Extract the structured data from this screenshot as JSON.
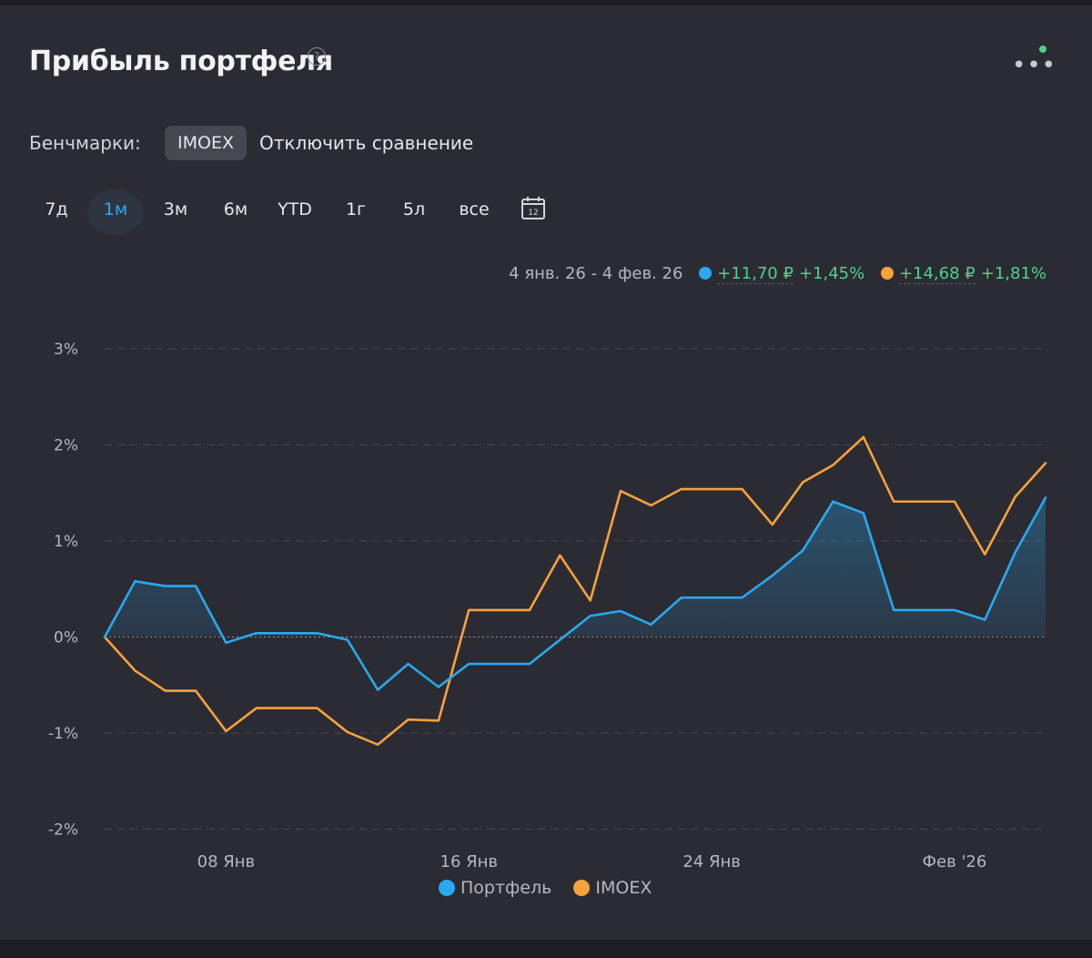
{
  "header": {
    "title": "Прибыль портфеля",
    "help_icon": "?",
    "more_icon": "•••"
  },
  "colors": {
    "portfolio": "#29a9f0",
    "imoex": "#f7a23b",
    "positive": "#4cd38a",
    "status_dot": "#4cd38a"
  },
  "benchmarks": {
    "label": "Бенчмарки:",
    "chip": "IMOEX",
    "disable_label": "Отключить сравнение"
  },
  "periods": [
    "7д",
    "1м",
    "3м",
    "6м",
    "YTD",
    "1г",
    "5л",
    "все"
  ],
  "active_period": "1м",
  "calendar_icon": "12",
  "summary": {
    "range": "4 янв. 26 - 4 фев. 26",
    "portfolio_value": "+11,70 ₽",
    "portfolio_pct": "+1,45%",
    "imoex_value": "+14,68 ₽",
    "imoex_pct": "+1,81%"
  },
  "legend": {
    "portfolio": "Портфель",
    "imoex": "IMOEX"
  },
  "chart_data": {
    "type": "line",
    "x_tick_labels": [
      "08 Янв",
      "16 Янв",
      "24 Янв",
      "Фев '26"
    ],
    "x_tick_positions": [
      4,
      12,
      20,
      28
    ],
    "y_tick_labels": [
      "3%",
      "2%",
      "1%",
      "0%",
      "-1%",
      "-2%"
    ],
    "y_ticks": [
      3,
      2,
      1,
      0,
      -1,
      -2
    ],
    "ylim": [
      -2,
      3
    ],
    "grid": true,
    "legend_position": "bottom",
    "x": [
      0,
      1,
      2,
      3,
      4,
      5,
      6,
      7,
      8,
      9,
      10,
      11,
      12,
      13,
      14,
      15,
      16,
      17,
      18,
      19,
      20,
      21,
      22,
      23,
      24,
      25,
      26,
      27,
      28,
      29,
      30,
      31
    ],
    "series": [
      {
        "name": "Портфель",
        "values": [
          0,
          0.58,
          0.53,
          0.53,
          -0.06,
          0.04,
          0.04,
          0.04,
          -0.03,
          -0.55,
          -0.28,
          -0.52,
          -0.28,
          -0.28,
          -0.28,
          -0.03,
          0.22,
          0.27,
          0.13,
          0.41,
          0.41,
          0.41,
          0.64,
          0.9,
          1.41,
          1.29,
          0.28,
          0.28,
          0.28,
          0.18,
          0.88,
          1.45
        ]
      },
      {
        "name": "IMOEX",
        "values": [
          0,
          -0.35,
          -0.56,
          -0.56,
          -0.98,
          -0.74,
          -0.74,
          -0.74,
          -0.99,
          -1.12,
          -0.86,
          -0.87,
          0.28,
          0.28,
          0.28,
          0.85,
          0.38,
          1.52,
          1.37,
          1.54,
          1.54,
          1.54,
          1.17,
          1.61,
          1.79,
          2.08,
          1.41,
          1.41,
          1.41,
          0.86,
          1.46,
          1.81
        ]
      }
    ]
  }
}
